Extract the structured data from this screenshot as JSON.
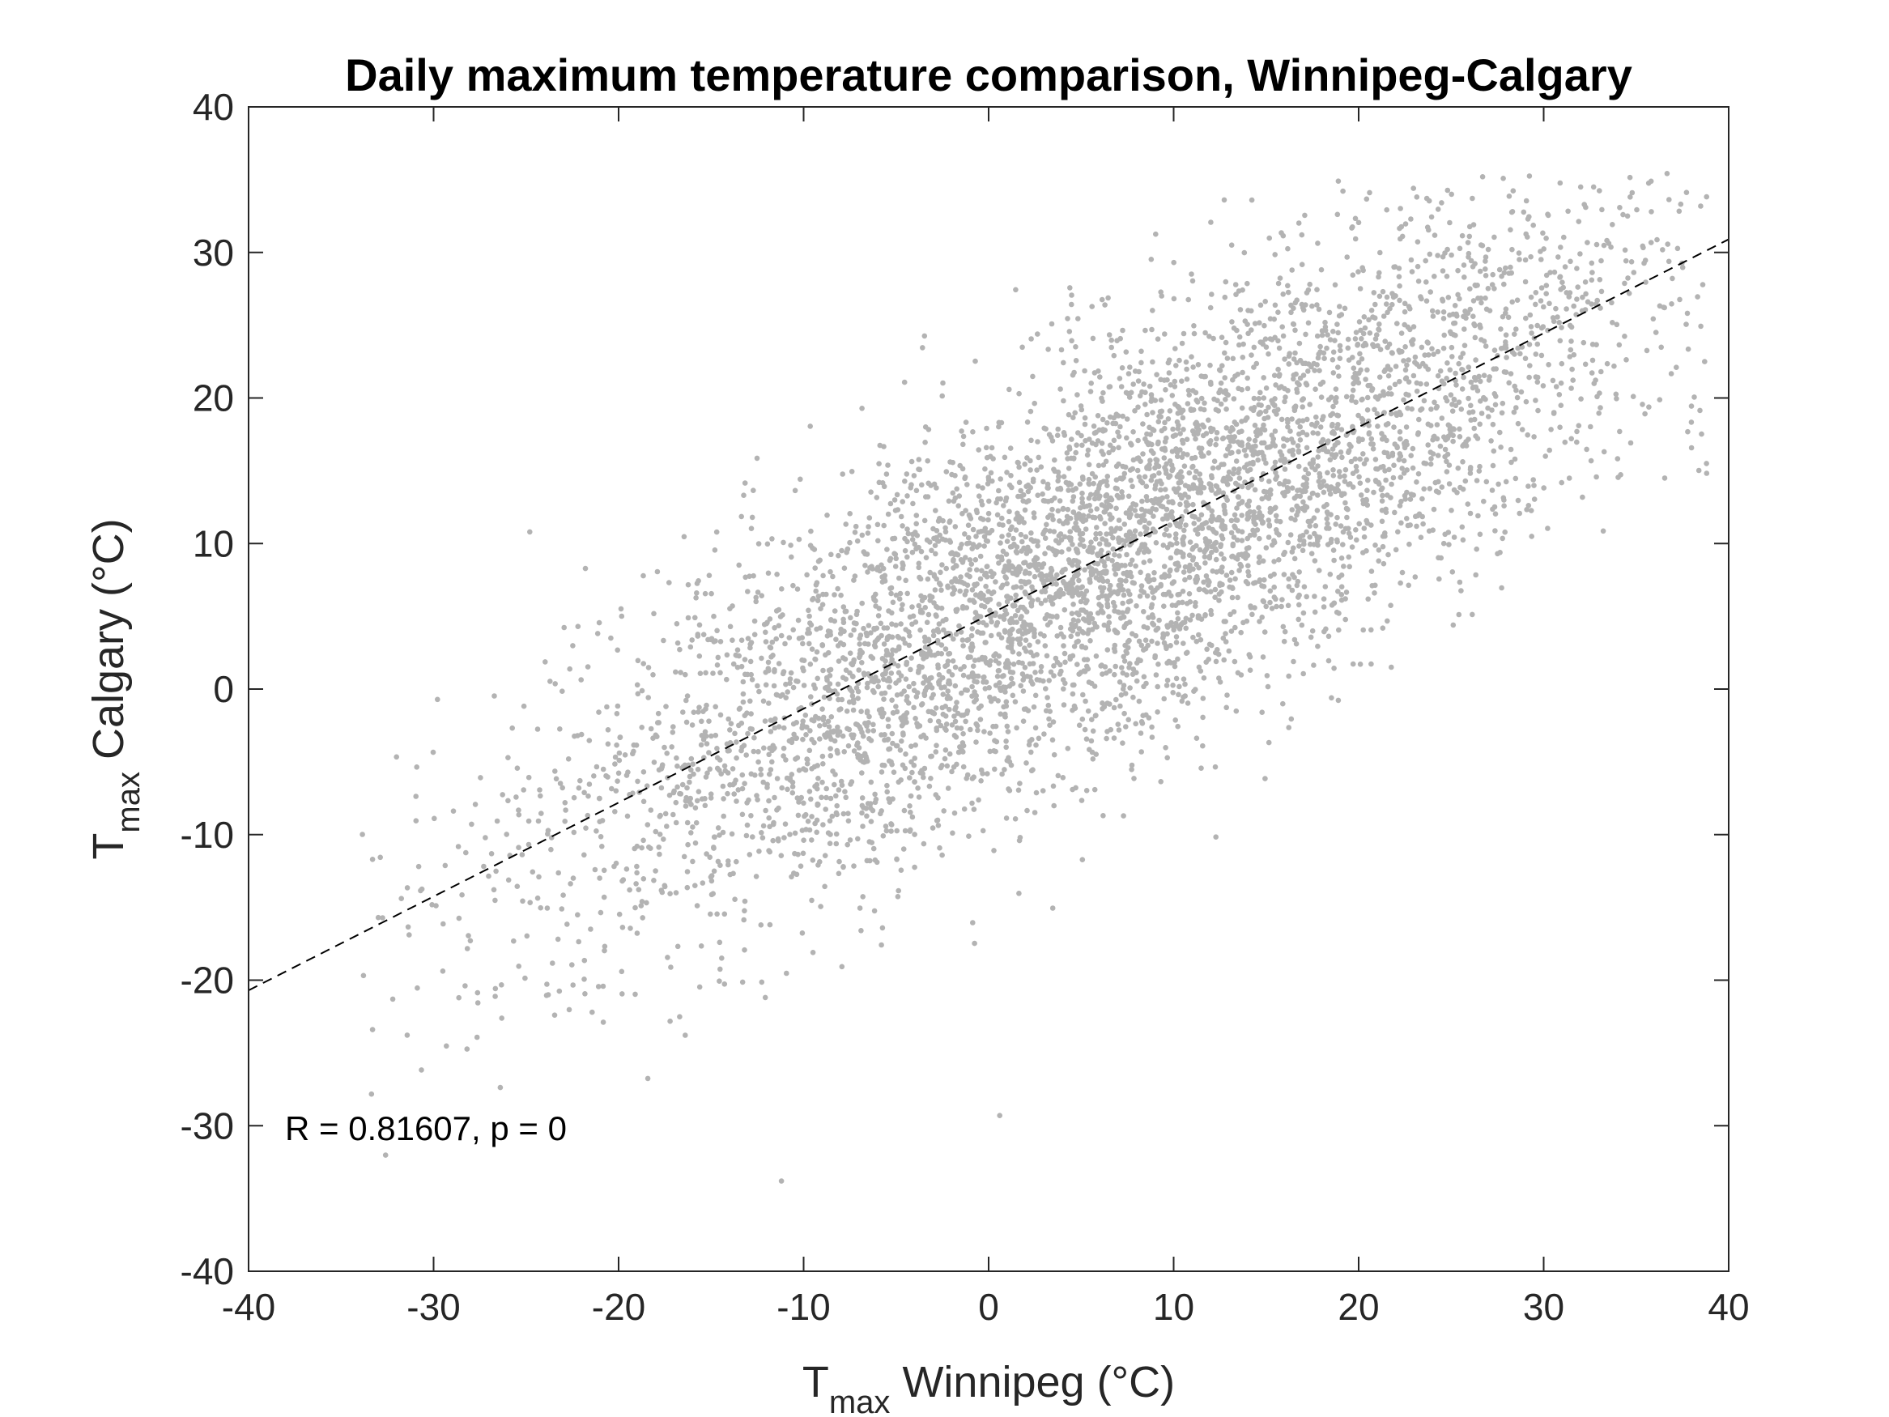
{
  "chart_data": {
    "type": "scatter",
    "title": "Daily maximum temperature comparison, Winnipeg-Calgary",
    "xlabel": {
      "main": "T",
      "sub": "max",
      "rest": " Winnipeg (°C)"
    },
    "ylabel": {
      "main": "T",
      "sub": "max",
      "rest": " Calgary (°C)"
    },
    "xlim": [
      -40,
      40
    ],
    "ylim": [
      -40,
      40
    ],
    "xticks": [
      "-40",
      "-30",
      "-20",
      "-10",
      "0",
      "10",
      "20",
      "30",
      "40"
    ],
    "yticks": [
      "-40",
      "-30",
      "-20",
      "-10",
      "0",
      "10",
      "20",
      "30",
      "40"
    ],
    "grid": false,
    "legend": "none",
    "marker_color": "#b3b3b3",
    "fit_line": {
      "style": "dashed",
      "color": "#000000",
      "slope": 0.645,
      "intercept": 5.1
    },
    "annotation": "R = 0.81607, p = 0",
    "point_cloud": {
      "count": 5500,
      "correlation": 0.81607,
      "x_mean": 6.5,
      "x_std": 15.0,
      "y_mean": 9.3,
      "y_std": 11.8,
      "x_range": [
        -34,
        39
      ]
    },
    "notable_points": [
      {
        "x": 26.7,
        "y": 35.2
      },
      {
        "x": 18.9,
        "y": 34.9
      },
      {
        "x": 32.0,
        "y": 34.5
      },
      {
        "x": 38.8,
        "y": 15.5
      },
      {
        "x": 38.7,
        "y": 22.5
      },
      {
        "x": -11.2,
        "y": -33.8
      },
      {
        "x": -33.3,
        "y": -11.7
      },
      {
        "x": -33.3,
        "y": -23.4
      },
      {
        "x": 0.6,
        "y": -29.3
      },
      {
        "x": -24.8,
        "y": 10.8
      }
    ]
  }
}
